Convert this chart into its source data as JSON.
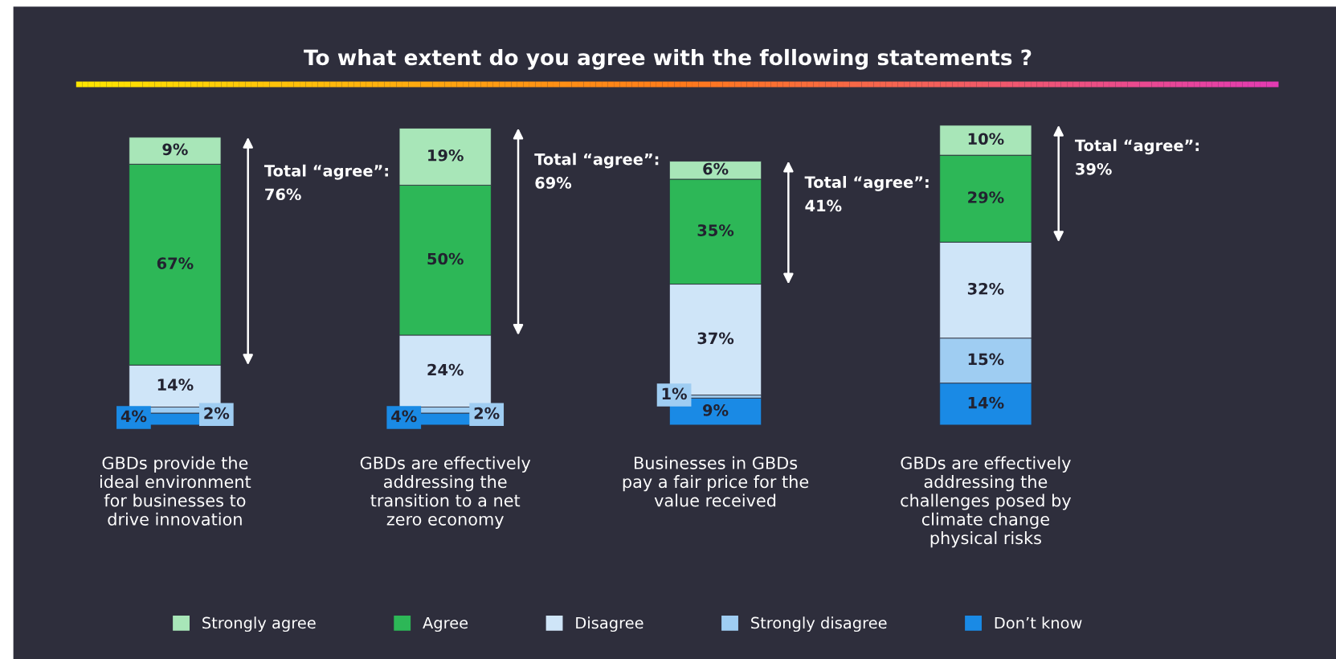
{
  "chart_data": {
    "type": "bar",
    "stacked": true,
    "legend": "bottom",
    "grid": false,
    "title": "To what extent do you agree with the following statements ?",
    "categories": [
      "GBDs provide the\nideal environment\nfor businesses to\ndrive innovation",
      "GBDs are effectively\naddressing the\ntransition to a net\nzero economy",
      "Businesses in GBDs\npay a fair price for the\nvalue received",
      "GBDs are effectively\naddressing the\nchallenges posed by\nclimate change\nphysical risks"
    ],
    "series": [
      {
        "name": "Don’t know",
        "color": "#1a8ae5",
        "values": [
          4,
          4,
          9,
          14
        ],
        "value_labels": [
          "4%",
          "4%",
          "9%",
          "14%"
        ]
      },
      {
        "name": "Strongly disagree",
        "color": "#9fcdf2",
        "values": [
          2,
          2,
          1,
          15
        ],
        "value_labels": [
          "2%",
          "2%",
          "1%",
          "15%"
        ]
      },
      {
        "name": "Disagree",
        "color": "#cfe5f8",
        "values": [
          14,
          24,
          37,
          32
        ],
        "value_labels": [
          "14%",
          "24%",
          "37%",
          "32%"
        ]
      },
      {
        "name": "Agree",
        "color": "#2db757",
        "values": [
          67,
          50,
          35,
          29
        ],
        "value_labels": [
          "67%",
          "50%",
          "35%",
          "29%"
        ]
      },
      {
        "name": "Strongly agree",
        "color": "#a8e6b8",
        "values": [
          9,
          19,
          6,
          10
        ],
        "value_labels": [
          "9%",
          "19%",
          "6%",
          "10%"
        ]
      }
    ],
    "annotations": [
      "Total “agree”:\n76%",
      "Total “agree”:\n69%",
      "Total “agree”:\n41%",
      "Total “agree”:\n39%"
    ]
  }
}
